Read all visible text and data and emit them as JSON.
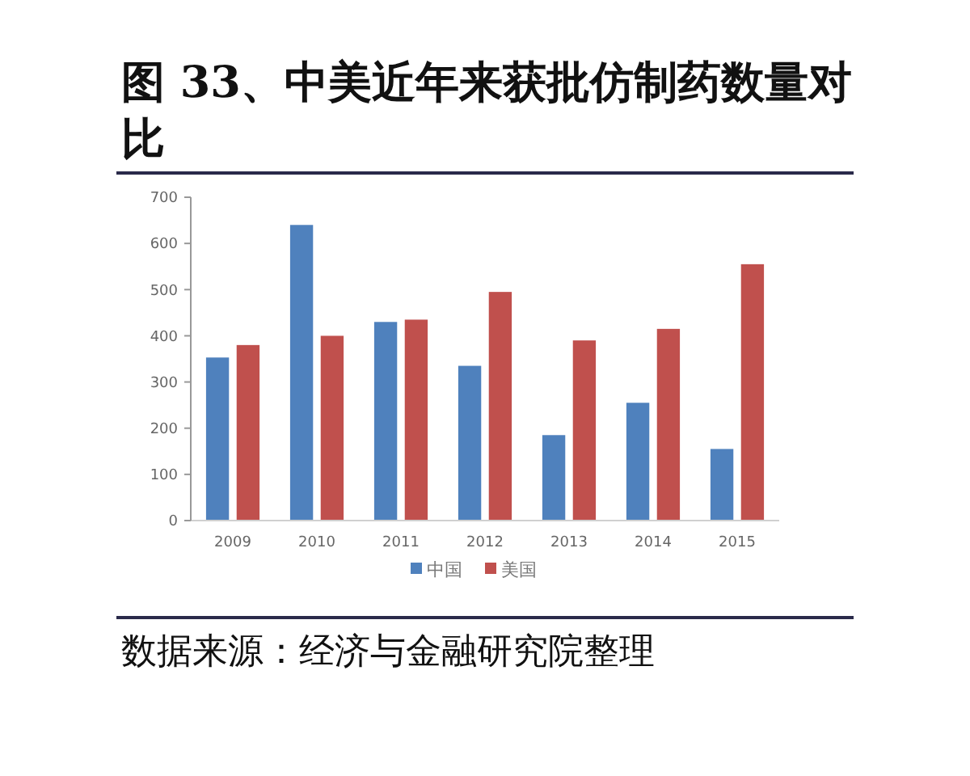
{
  "chart_data": {
    "type": "bar",
    "title": "图 33、中美近年来获批仿制药数量对比",
    "categories": [
      "2009",
      "2010",
      "2011",
      "2012",
      "2013",
      "2014",
      "2015"
    ],
    "series": [
      {
        "name": "中国",
        "color": "#4f81bd",
        "values": [
          353,
          640,
          430,
          335,
          185,
          255,
          155
        ]
      },
      {
        "name": "美国",
        "color": "#c0504d",
        "values": [
          380,
          400,
          435,
          495,
          390,
          415,
          555
        ]
      }
    ],
    "ylim": [
      0,
      700
    ],
    "yticks": [
      0,
      100,
      200,
      300,
      400,
      500,
      600,
      700
    ],
    "legend": "bottom",
    "annotations": [
      "数据来源：经济与金融研究院整理"
    ]
  }
}
